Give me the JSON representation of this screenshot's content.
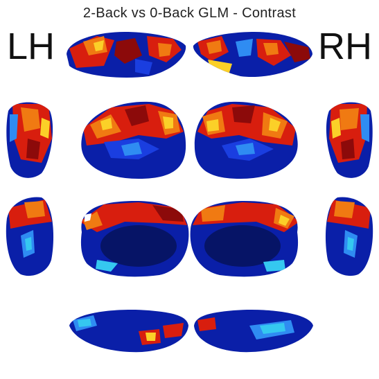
{
  "figure": {
    "title": "2-Back vs 0-Back GLM - Contrast",
    "left_label": "LH",
    "right_label": "RH"
  },
  "views": [
    {
      "name": "superior-left-view",
      "hemisphere": "LH"
    },
    {
      "name": "superior-right-view",
      "hemisphere": "RH"
    },
    {
      "name": "anterior-left-view",
      "hemisphere": "LH"
    },
    {
      "name": "lateral-left-view",
      "hemisphere": "LH"
    },
    {
      "name": "lateral-right-view",
      "hemisphere": "RH"
    },
    {
      "name": "anterior-right-view",
      "hemisphere": "RH"
    },
    {
      "name": "posterior-left-view",
      "hemisphere": "LH"
    },
    {
      "name": "medial-left-view",
      "hemisphere": "LH"
    },
    {
      "name": "medial-right-view",
      "hemisphere": "RH"
    },
    {
      "name": "posterior-right-view",
      "hemisphere": "RH"
    },
    {
      "name": "inferior-left-view",
      "hemisphere": "LH"
    },
    {
      "name": "inferior-right-view",
      "hemisphere": "RH"
    }
  ],
  "colors": {
    "deep_blue": "#0a1fa8",
    "blue": "#1a3ee0",
    "light_blue": "#2f8cf2",
    "cyan": "#35c8f0",
    "navy": "#061466",
    "dark_red": "#8c0a0a",
    "red": "#d81e0e",
    "orange": "#f07a12",
    "yellow": "#fbd028",
    "pale_yellow": "#fff27a",
    "white": "#ffffff"
  }
}
